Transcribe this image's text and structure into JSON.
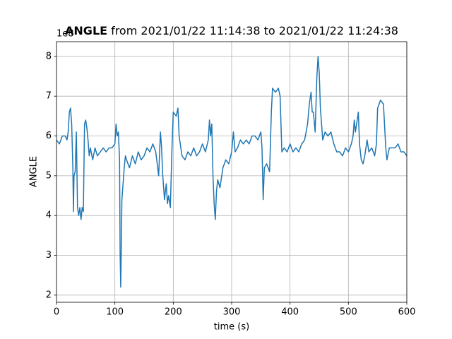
{
  "chart_data": {
    "type": "line",
    "title": {
      "bold": "ANGLE",
      "rest": "from 2021/01/22 11:14:38 to 2021/01/22 11:24:38"
    },
    "offset_text": "1e8",
    "xlabel": "time (s)",
    "ylabel": "ANGLE",
    "color": "#1f77b4",
    "grid": true,
    "xlim": [
      0,
      600
    ],
    "ylim": [
      1.82,
      8.37
    ],
    "xticks": [
      0,
      100,
      200,
      300,
      400,
      500,
      600
    ],
    "yticks": [
      2,
      3,
      4,
      5,
      6,
      7,
      8
    ],
    "x": [
      0,
      5,
      10,
      15,
      18,
      20,
      22,
      24,
      26,
      28,
      29,
      30,
      32,
      34,
      36,
      38,
      40,
      42,
      44,
      46,
      48,
      50,
      52,
      54,
      56,
      58,
      62,
      66,
      70,
      75,
      80,
      85,
      90,
      95,
      100,
      102,
      104,
      106,
      108,
      109,
      110,
      111,
      112,
      114,
      116,
      118,
      120,
      125,
      130,
      135,
      140,
      145,
      150,
      155,
      160,
      165,
      170,
      175,
      178,
      180,
      182,
      185,
      188,
      190,
      192,
      195,
      198,
      200,
      205,
      208,
      210,
      215,
      220,
      225,
      230,
      235,
      240,
      245,
      250,
      255,
      260,
      262,
      264,
      266,
      268,
      270,
      272,
      274,
      276,
      280,
      285,
      290,
      295,
      300,
      303,
      306,
      310,
      315,
      320,
      325,
      330,
      335,
      340,
      345,
      350,
      352,
      354,
      356,
      360,
      365,
      368,
      370,
      375,
      380,
      383,
      386,
      390,
      395,
      400,
      405,
      410,
      415,
      420,
      425,
      430,
      433,
      436,
      438,
      440,
      443,
      446,
      448,
      450,
      452,
      454,
      456,
      460,
      465,
      470,
      475,
      480,
      485,
      490,
      495,
      500,
      505,
      508,
      510,
      512,
      515,
      517,
      519,
      522,
      525,
      528,
      532,
      535,
      540,
      545,
      548,
      550,
      555,
      560,
      564,
      566,
      570,
      575,
      580,
      585,
      590,
      595,
      600
    ],
    "values": [
      5.9,
      5.8,
      6.0,
      6.0,
      5.9,
      6.1,
      6.6,
      6.7,
      6.3,
      5.2,
      4.1,
      5.0,
      5.1,
      6.1,
      4.2,
      4.0,
      4.2,
      3.9,
      4.2,
      4.1,
      6.3,
      6.4,
      6.2,
      5.9,
      5.5,
      5.7,
      5.4,
      5.7,
      5.5,
      5.6,
      5.7,
      5.6,
      5.7,
      5.7,
      5.8,
      6.3,
      6.0,
      6.1,
      5.4,
      3.0,
      2.2,
      3.2,
      4.4,
      4.8,
      5.2,
      5.5,
      5.4,
      5.2,
      5.5,
      5.3,
      5.6,
      5.4,
      5.5,
      5.7,
      5.6,
      5.8,
      5.6,
      5.0,
      6.1,
      5.7,
      5.0,
      4.4,
      4.8,
      4.3,
      4.5,
      4.2,
      5.8,
      6.6,
      6.5,
      6.7,
      6.0,
      5.5,
      5.4,
      5.6,
      5.5,
      5.7,
      5.5,
      5.6,
      5.8,
      5.6,
      5.9,
      6.4,
      6.0,
      6.3,
      5.0,
      4.3,
      3.9,
      4.6,
      4.9,
      4.7,
      5.2,
      5.4,
      5.3,
      5.6,
      6.1,
      5.6,
      5.7,
      5.9,
      5.8,
      5.9,
      5.8,
      6.0,
      6.0,
      5.9,
      6.1,
      5.7,
      4.4,
      5.2,
      5.3,
      5.1,
      6.6,
      7.2,
      7.1,
      7.2,
      7.0,
      5.6,
      5.7,
      5.6,
      5.8,
      5.6,
      5.7,
      5.6,
      5.8,
      5.9,
      6.3,
      6.8,
      7.1,
      6.6,
      6.6,
      6.1,
      7.5,
      8.0,
      7.6,
      6.7,
      6.3,
      5.9,
      6.1,
      6.0,
      6.1,
      5.8,
      5.6,
      5.6,
      5.5,
      5.7,
      5.6,
      5.8,
      6.0,
      6.4,
      6.1,
      6.4,
      6.6,
      5.8,
      5.4,
      5.3,
      5.5,
      5.9,
      5.6,
      5.7,
      5.5,
      5.8,
      6.7,
      6.9,
      6.8,
      5.7,
      5.4,
      5.7,
      5.7,
      5.7,
      5.8,
      5.6,
      5.6,
      5.5
    ]
  }
}
